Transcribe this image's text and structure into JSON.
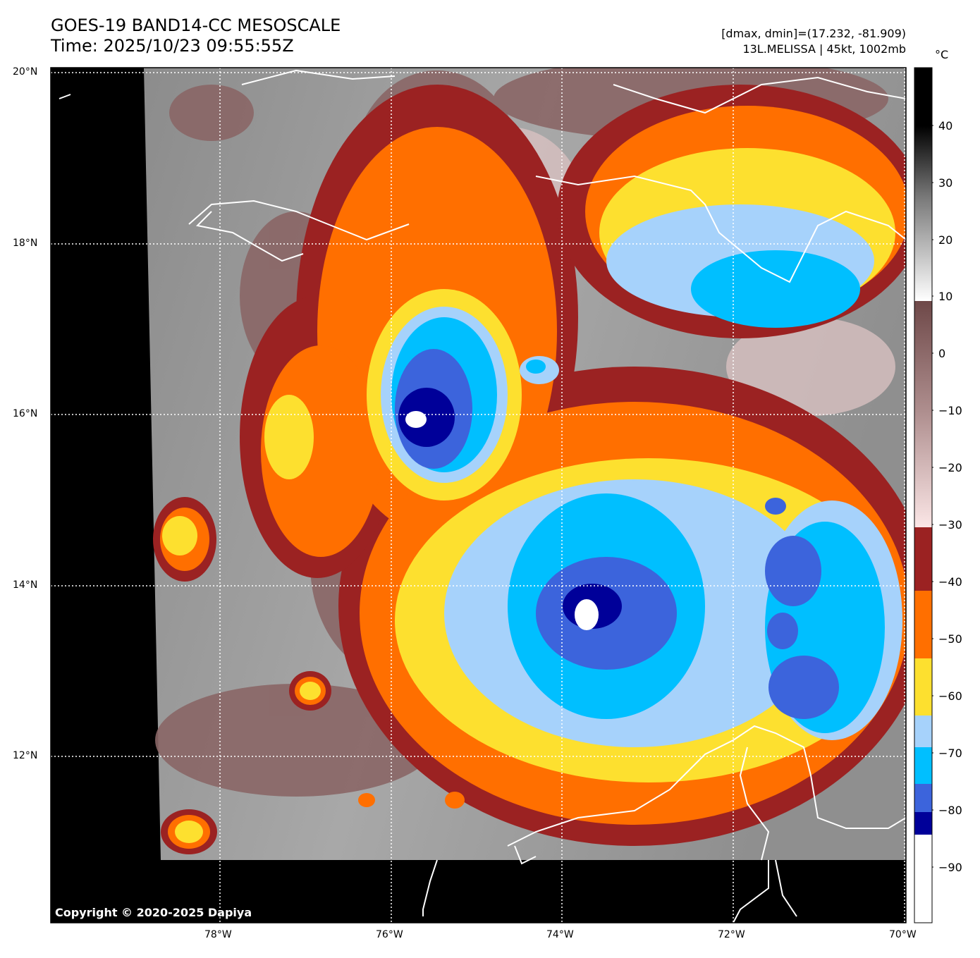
{
  "title": {
    "line1": "GOES-19 BAND14-CC MESOSCALE",
    "line2": "Time: 2025/10/23 09:55:55Z"
  },
  "storm": {
    "dmax_dmin": "[dmax, dmin]=(17.232, -81.909)",
    "info": "13L.MELISSA | 45kt, 1002mb"
  },
  "axes": {
    "lat_labels": [
      "20°N",
      "18°N",
      "16°N",
      "14°N",
      "12°N"
    ],
    "lon_labels": [
      "78°W",
      "76°W",
      "74°W",
      "72°W",
      "70°W"
    ]
  },
  "colorbar": {
    "unit": "°C",
    "ticks": [
      "40",
      "30",
      "20",
      "10",
      "0",
      "−10",
      "−20",
      "−30",
      "−40",
      "−50",
      "−60",
      "−70",
      "−80",
      "−90"
    ],
    "colors": {
      "dark_red": "#9b2222",
      "orange": "#ff6f00",
      "yellow": "#fde02f",
      "light_blue": "#a6d2fb",
      "cyan_blue": "#00bfff",
      "royal_blue": "#3c64dc",
      "navy": "#000099",
      "white": "#ffffff",
      "brown": "#7a5050",
      "pink": "#f8e0e0"
    }
  },
  "copyright": "Copyright © 2020-2025 Dapiya"
}
